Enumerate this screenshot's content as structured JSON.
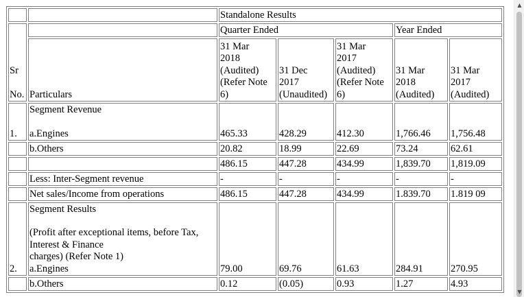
{
  "header": {
    "standalone": "Standalone Results",
    "quarter_ended": "Quarter Ended",
    "year_ended": "Year Ended",
    "sr": "Sr",
    "no": "No.",
    "particulars": "Particulars",
    "col1": [
      "31 Mar",
      "2018",
      "(Audited)",
      "(Refer Note",
      "6)"
    ],
    "col2": [
      "31 Dec",
      "2017",
      "(Unaudited)"
    ],
    "col3": [
      "31 Mar",
      "2017",
      "(Audited)",
      "(Refer Note",
      "6)"
    ],
    "col4": [
      "31 Mar",
      "2018",
      "(Audited)"
    ],
    "col5": [
      "31 Mar",
      "2017",
      "(Audited)"
    ]
  },
  "section1": {
    "sr": "1.",
    "title": "Segment Revenue",
    "rows": [
      {
        "label": "a.Engines",
        "values": [
          "465.33",
          "428.29",
          "412.30",
          "1,766.46",
          "1,756.48"
        ]
      },
      {
        "label": "b.Others",
        "values": [
          "20.82",
          "18.99",
          "22.69",
          "73.24",
          "62.61"
        ]
      },
      {
        "label": "",
        "values": [
          "486.15",
          "447.28",
          "434.99",
          "1,839.70",
          "1,819.09"
        ]
      },
      {
        "label": "Less: Inter-Segment revenue",
        "values": [
          "-",
          "-",
          "-",
          "-",
          "-"
        ]
      },
      {
        "label": "Net sales/Income from operations",
        "values": [
          "486.15",
          "447.28",
          "434.99",
          "1.839.70",
          "1.819 09"
        ]
      }
    ]
  },
  "section2": {
    "sr": "2.",
    "title": "Segment Results",
    "desc_lines": [
      "(Profit after exceptional items, before Tax,",
      "Interest & Finance",
      "charges) (Refer Note 1)"
    ],
    "rows": [
      {
        "label": "a.Engines",
        "values": [
          "79.00",
          "69.76",
          "61.63",
          "284.91",
          "270.95"
        ]
      },
      {
        "label": "b.Others",
        "values": [
          "0.12",
          "(0.05)",
          "0.93",
          "1.27",
          "4.93"
        ]
      }
    ]
  },
  "scrollbar": {
    "up_icon": "▲",
    "down_icon": "▼",
    "position": 0.0
  }
}
